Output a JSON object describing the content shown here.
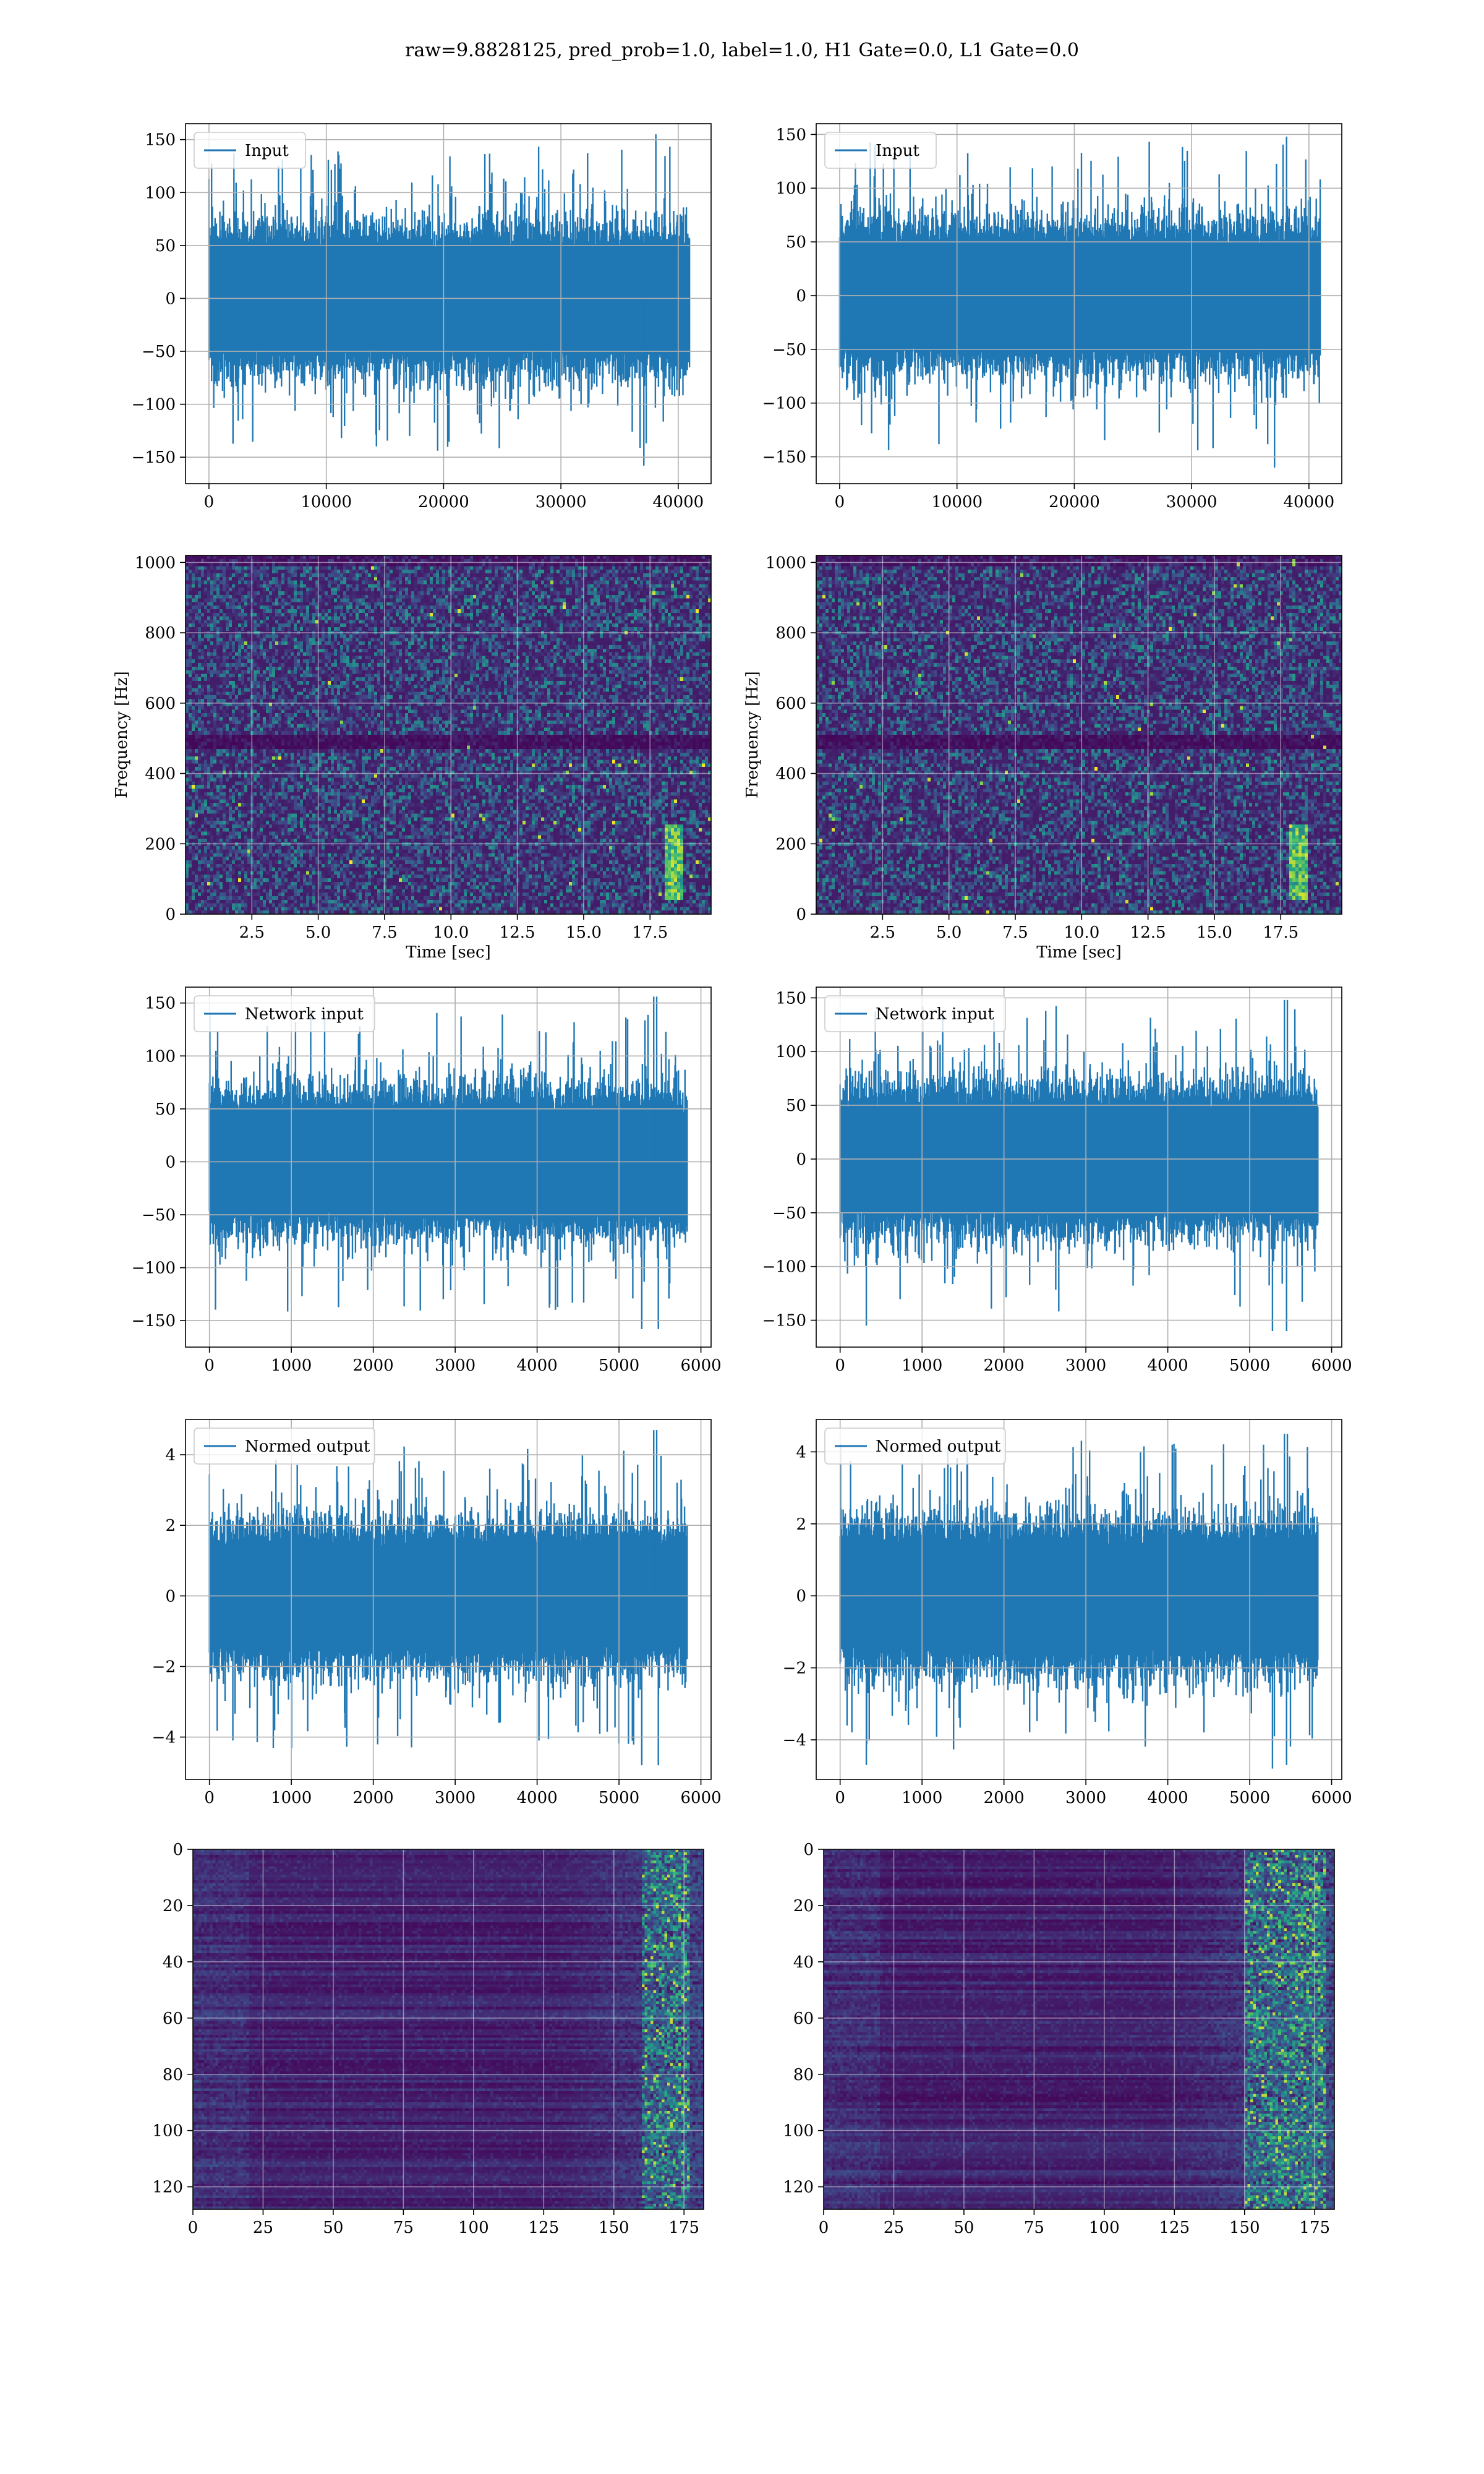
{
  "figure": {
    "suptitle": "raw=9.8828125, pred_prob=1.0, label=1.0, H1 Gate=0.0, L1 Gate=0.0"
  },
  "colors": {
    "line": "#1f77b4",
    "grid": "#b0b0b0",
    "viridis_low": "#440154",
    "viridis_mid": "#21918c",
    "viridis_high": "#fde725"
  },
  "chart_data": [
    {
      "id": "h1_input",
      "type": "line",
      "legend": "Input",
      "legend_loc": "upper left",
      "xlim": [
        -2000,
        42800
      ],
      "ylim": [
        -175,
        165
      ],
      "xticks": [
        0,
        10000,
        20000,
        30000,
        40000
      ],
      "yticks": [
        -150,
        -100,
        -50,
        0,
        50,
        100,
        150
      ],
      "x_range": [
        0,
        40960
      ],
      "series": [
        {
          "envelope_min": -158,
          "envelope_max": 155,
          "typical_band": [
            -60,
            60
          ]
        }
      ],
      "grid": true
    },
    {
      "id": "l1_input",
      "type": "line",
      "legend": "Input",
      "legend_loc": "upper left",
      "xlim": [
        -2000,
        42800
      ],
      "ylim": [
        -175,
        160
      ],
      "xticks": [
        0,
        10000,
        20000,
        30000,
        40000
      ],
      "yticks": [
        -150,
        -100,
        -50,
        0,
        50,
        100,
        150
      ],
      "x_range": [
        0,
        40960
      ],
      "series": [
        {
          "envelope_min": -160,
          "envelope_max": 148,
          "typical_band": [
            -60,
            60
          ]
        }
      ],
      "grid": true
    },
    {
      "id": "h1_spectrogram",
      "type": "heatmap",
      "colormap": "viridis",
      "xlabel": "Time [sec]",
      "ylabel": "Frequency [Hz]",
      "xlim": [
        0,
        19.8
      ],
      "ylim": [
        0,
        1020
      ],
      "xticks": [
        2.5,
        5.0,
        7.5,
        10.0,
        12.5,
        15.0,
        17.5
      ],
      "yticks": [
        0,
        200,
        400,
        600,
        800,
        1000
      ],
      "features": {
        "dark_band_hz": [
          475,
          520
        ],
        "chirp_time_sec": 18.3,
        "chirp_freq_range_hz": [
          50,
          260
        ]
      },
      "grid": true
    },
    {
      "id": "l1_spectrogram",
      "type": "heatmap",
      "colormap": "viridis",
      "xlabel": "Time [sec]",
      "ylabel": "Frequency [Hz]",
      "xlim": [
        0,
        19.8
      ],
      "ylim": [
        0,
        1020
      ],
      "xticks": [
        2.5,
        5.0,
        7.5,
        10.0,
        12.5,
        15.0,
        17.5
      ],
      "yticks": [
        0,
        200,
        400,
        600,
        800,
        1000
      ],
      "features": {
        "dark_band_hz": [
          475,
          520
        ],
        "chirp_time_sec": 18.1,
        "chirp_freq_range_hz": [
          50,
          260
        ]
      },
      "grid": true
    },
    {
      "id": "h1_network_input",
      "type": "line",
      "legend": "Network input",
      "legend_loc": "upper left",
      "xlim": [
        -292,
        6124
      ],
      "ylim": [
        -175,
        165
      ],
      "xticks": [
        0,
        1000,
        2000,
        3000,
        4000,
        5000,
        6000
      ],
      "yticks": [
        -150,
        -100,
        -50,
        0,
        50,
        100,
        150
      ],
      "x_range": [
        0,
        5832
      ],
      "series": [
        {
          "envelope_min": -158,
          "envelope_max": 156,
          "typical_band": [
            -60,
            60
          ],
          "spikes": [
            {
              "x": 5460,
              "y": 156
            },
            {
              "x": 5480,
              "y": -158
            }
          ]
        }
      ],
      "grid": true
    },
    {
      "id": "l1_network_input",
      "type": "line",
      "legend": "Network input",
      "legend_loc": "upper left",
      "xlim": [
        -292,
        6124
      ],
      "ylim": [
        -175,
        160
      ],
      "xticks": [
        0,
        1000,
        2000,
        3000,
        4000,
        5000,
        6000
      ],
      "yticks": [
        -150,
        -100,
        -50,
        0,
        50,
        100,
        150
      ],
      "x_range": [
        0,
        5832
      ],
      "series": [
        {
          "envelope_min": -160,
          "envelope_max": 148,
          "typical_band": [
            -60,
            60
          ],
          "spikes": [
            {
              "x": 5460,
              "y": 148
            },
            {
              "x": 5450,
              "y": -160
            },
            {
              "x": 320,
              "y": -155
            }
          ]
        }
      ],
      "grid": true
    },
    {
      "id": "h1_normed_output",
      "type": "line",
      "legend": "Normed output",
      "legend_loc": "upper left",
      "xlim": [
        -292,
        6124
      ],
      "ylim": [
        -5.2,
        5.0
      ],
      "xticks": [
        0,
        1000,
        2000,
        3000,
        4000,
        5000,
        6000
      ],
      "yticks": [
        -4,
        -2,
        0,
        2,
        4
      ],
      "x_range": [
        0,
        5832
      ],
      "series": [
        {
          "envelope_min": -4.8,
          "envelope_max": 4.7,
          "typical_band": [
            -1.8,
            1.8
          ],
          "spikes": [
            {
              "x": 5460,
              "y": 4.7
            },
            {
              "x": 5480,
              "y": -4.8
            }
          ]
        }
      ],
      "grid": true
    },
    {
      "id": "l1_normed_output",
      "type": "line",
      "legend": "Normed output",
      "legend_loc": "upper left",
      "xlim": [
        -292,
        6124
      ],
      "ylim": [
        -5.1,
        4.9
      ],
      "xticks": [
        0,
        1000,
        2000,
        3000,
        4000,
        5000,
        6000
      ],
      "yticks": [
        -4,
        -2,
        0,
        2,
        4
      ],
      "x_range": [
        0,
        5832
      ],
      "series": [
        {
          "envelope_min": -4.8,
          "envelope_max": 4.5,
          "typical_band": [
            -1.8,
            1.8
          ],
          "spikes": [
            {
              "x": 5460,
              "y": 4.5
            },
            {
              "x": 5450,
              "y": -4.7
            },
            {
              "x": 320,
              "y": -4.7
            }
          ]
        }
      ],
      "grid": true
    },
    {
      "id": "h1_feature_map",
      "type": "heatmap",
      "colormap": "viridis",
      "xlim": [
        0,
        182
      ],
      "ylim": [
        128,
        0
      ],
      "xticks": [
        0,
        25,
        50,
        75,
        100,
        125,
        150,
        175
      ],
      "yticks": [
        0,
        20,
        40,
        60,
        80,
        100,
        120
      ],
      "features": {
        "bright_column_range": [
          160,
          176
        ]
      },
      "grid": true
    },
    {
      "id": "l1_feature_map",
      "type": "heatmap",
      "colormap": "viridis",
      "xlim": [
        0,
        182
      ],
      "ylim": [
        128,
        0
      ],
      "xticks": [
        0,
        25,
        50,
        75,
        100,
        125,
        150,
        175
      ],
      "yticks": [
        0,
        20,
        40,
        60,
        80,
        100,
        120
      ],
      "features": {
        "bright_column_range": [
          150,
          178
        ]
      },
      "grid": true
    }
  ]
}
